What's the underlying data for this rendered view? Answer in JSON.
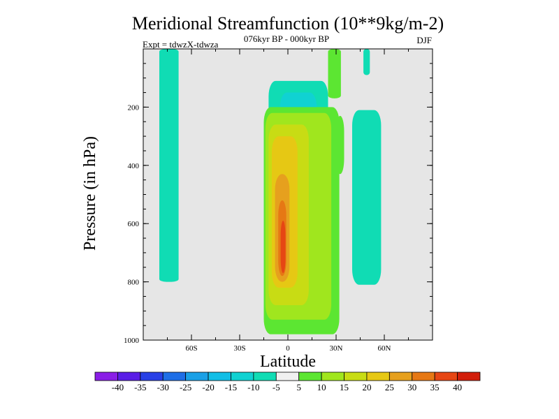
{
  "chart_data": {
    "type": "heatmap",
    "title": "Meridional Streamfunction (10**9kg/m-2)",
    "subtitle": "076kyr BP - 000kyr BP",
    "left_label": "Expt = tdwzX-tdwza",
    "season": "DJF",
    "xlabel": "Latitude",
    "ylabel": "Pressure (in hPa)",
    "xlim": [
      -90,
      90
    ],
    "ylim": [
      0,
      1000
    ],
    "y_inverted": true,
    "x_ticks": [
      {
        "value": -60,
        "label": "60S"
      },
      {
        "value": -30,
        "label": "30S"
      },
      {
        "value": 0,
        "label": "0"
      },
      {
        "value": 30,
        "label": "30N"
      },
      {
        "value": 60,
        "label": "60N"
      }
    ],
    "y_ticks": [
      {
        "value": 200,
        "label": "200"
      },
      {
        "value": 400,
        "label": "400"
      },
      {
        "value": 600,
        "label": "600"
      },
      {
        "value": 800,
        "label": "800"
      },
      {
        "value": 1000,
        "label": "1000"
      }
    ],
    "background_color": "#e6e6e6",
    "colorbar": {
      "levels": [
        "-40",
        "-35",
        "-30",
        "-25",
        "-20",
        "-15",
        "-10",
        "-5",
        "5",
        "10",
        "15",
        "20",
        "25",
        "30",
        "35",
        "40"
      ],
      "colors": [
        "#8a1ee6",
        "#5a1ee6",
        "#2840e6",
        "#1e6ee6",
        "#1aa0e6",
        "#12bee6",
        "#10d2d2",
        "#10dcb4",
        "#f0f0f0",
        "#5ce632",
        "#a0e61e",
        "#c8dc14",
        "#e6c814",
        "#e6a01e",
        "#e67814",
        "#e64614",
        "#d21e0a"
      ]
    },
    "regions": [
      {
        "value": -7,
        "lat_min": -80,
        "lat_max": -68,
        "p_top": 0,
        "p_bottom": 800
      },
      {
        "value": -7,
        "lat_min": -12,
        "lat_max": 25,
        "p_top": 110,
        "p_bottom": 290
      },
      {
        "value": -12,
        "lat_min": -5,
        "lat_max": 18,
        "p_top": 150,
        "p_bottom": 260
      },
      {
        "value": -15,
        "lat_min": 2,
        "lat_max": 14,
        "p_top": 185,
        "p_bottom": 250
      },
      {
        "value": -7,
        "lat_min": 40,
        "lat_max": 58,
        "p_top": 210,
        "p_bottom": 810
      },
      {
        "value": -10,
        "lat_min": 44,
        "lat_max": 52,
        "p_top": 320,
        "p_bottom": 700
      },
      {
        "value": -7,
        "lat_min": 47,
        "lat_max": 51,
        "p_top": 0,
        "p_bottom": 90
      },
      {
        "value": 7,
        "lat_min": 25,
        "lat_max": 33,
        "p_top": 0,
        "p_bottom": 170
      },
      {
        "value": 7,
        "lat_min": 30,
        "lat_max": 35,
        "p_top": 230,
        "p_bottom": 430
      },
      {
        "value": 7,
        "lat_min": -15,
        "lat_max": 32,
        "p_top": 200,
        "p_bottom": 980
      },
      {
        "value": 12,
        "lat_min": -14,
        "lat_max": 27,
        "p_top": 220,
        "p_bottom": 930
      },
      {
        "value": 17,
        "lat_min": -12,
        "lat_max": 13,
        "p_top": 260,
        "p_bottom": 880
      },
      {
        "value": 22,
        "lat_min": -10,
        "lat_max": 6,
        "p_top": 300,
        "p_bottom": 820
      },
      {
        "value": 27,
        "lat_min": -8,
        "lat_max": 1,
        "p_top": 430,
        "p_bottom": 800
      },
      {
        "value": 32,
        "lat_min": -6,
        "lat_max": -1,
        "p_top": 520,
        "p_bottom": 780
      },
      {
        "value": 37,
        "lat_min": -4.5,
        "lat_max": -1.5,
        "p_top": 590,
        "p_bottom": 770
      }
    ]
  }
}
